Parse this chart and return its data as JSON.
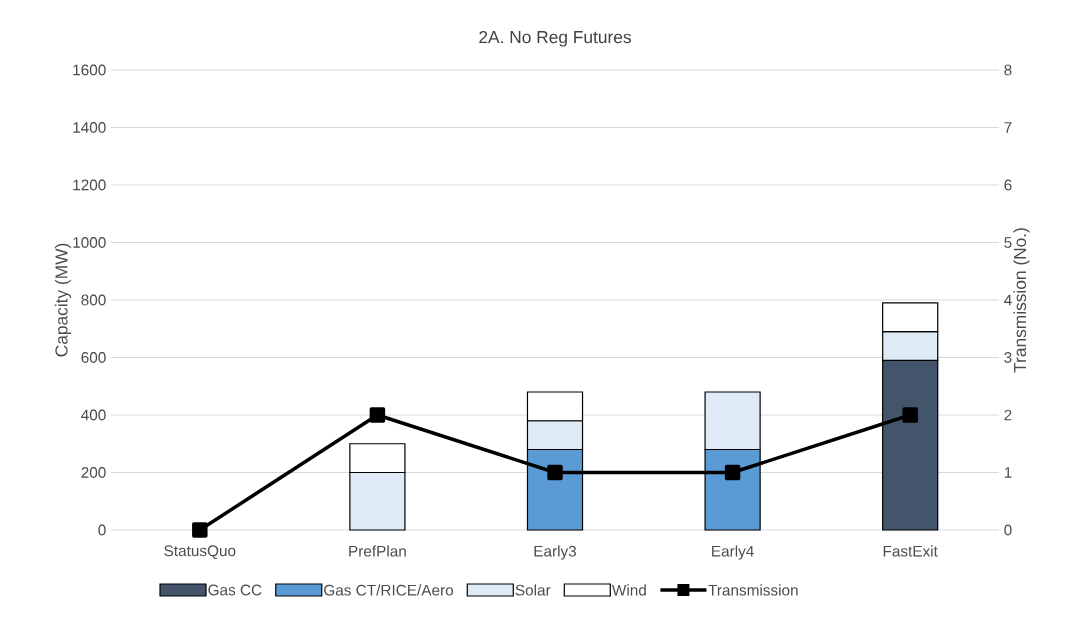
{
  "chart_data": {
    "type": "bar",
    "title": "2A. No Reg Futures",
    "ylabel": "Capacity (MW)",
    "y2label": "Transmission (No.)",
    "categories": [
      "StatusQuo",
      "PrefPlan",
      "Early3",
      "Early4",
      "FastExit"
    ],
    "stacked": true,
    "series": [
      {
        "name": "Gas CC",
        "color": "#44546a",
        "values": [
          0,
          0,
          0,
          0,
          590
        ]
      },
      {
        "name": "Gas CT/RICE/Aero",
        "color": "#5b9bd5",
        "values": [
          0,
          0,
          280,
          280,
          0
        ]
      },
      {
        "name": "Solar",
        "color": "#deebf7",
        "values": [
          0,
          200,
          100,
          200,
          100
        ]
      },
      {
        "name": "Wind",
        "color": "#ffffff",
        "values": [
          0,
          100,
          100,
          0,
          100
        ]
      },
      {
        "name": "Transmission",
        "type": "line",
        "axis": "y2",
        "marker": "square",
        "color": "#000000",
        "values": [
          0,
          2,
          1,
          1,
          2
        ]
      }
    ],
    "ylim": [
      0,
      1600
    ],
    "yticks": [
      0,
      200,
      400,
      600,
      800,
      1000,
      1200,
      1400,
      1600
    ],
    "y2lim": [
      0,
      8
    ],
    "y2ticks": [
      0,
      1,
      2,
      3,
      4,
      5,
      6,
      7,
      8
    ],
    "grid": "y",
    "legend": "bottom"
  }
}
